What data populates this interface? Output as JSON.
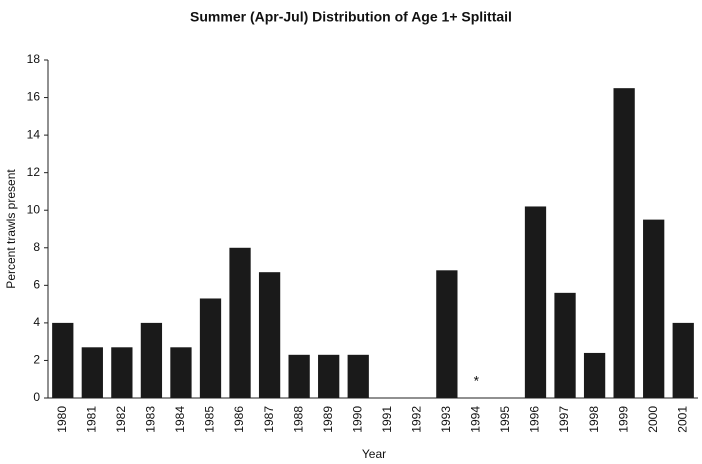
{
  "chart_data": {
    "type": "bar",
    "title": "Summer (Apr-Jul) Distribution of Age 1+ Splittail",
    "x_label": "Year",
    "y_label": "Percent trawls present",
    "categories": [
      "1980",
      "1981",
      "1982",
      "1983",
      "1984",
      "1985",
      "1986",
      "1987",
      "1988",
      "1989",
      "1990",
      "1991",
      "1992",
      "1993",
      "1994",
      "1995",
      "1996",
      "1997",
      "1998",
      "1999",
      "2000",
      "2001"
    ],
    "values": [
      4.0,
      2.7,
      2.7,
      4.0,
      2.7,
      5.3,
      8.0,
      6.7,
      2.3,
      2.3,
      2.3,
      0,
      0,
      6.8,
      0,
      0,
      10.2,
      5.6,
      2.4,
      16.5,
      9.5,
      4.0
    ],
    "color": "#1a1a1a",
    "ylim": [
      0,
      18
    ],
    "yticks": [
      0,
      2,
      4,
      6,
      8,
      10,
      12,
      14,
      16,
      18
    ],
    "grid": false,
    "annotation": {
      "text": "*",
      "category": "1994"
    }
  }
}
